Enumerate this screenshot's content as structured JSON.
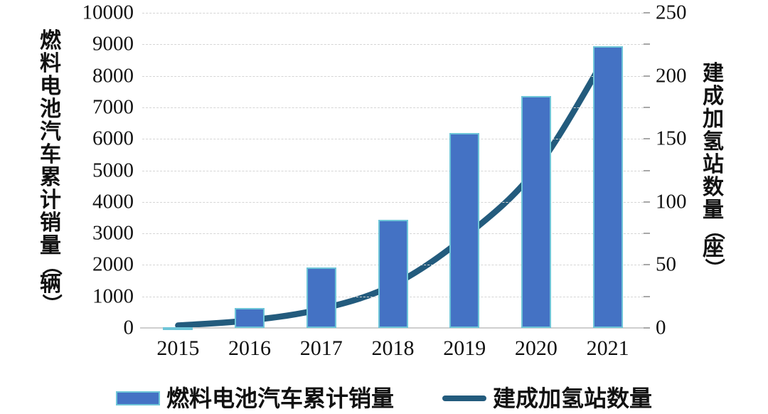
{
  "chart": {
    "colors": {
      "bar_fill": "#4472C4",
      "bar_border": "#6EC5D8",
      "line": "#235B7D",
      "gridline": "#d5d5d5",
      "axis_line": "#cfcfcf",
      "minor_tick": "#a8a8a8",
      "text": "#111111"
    },
    "legend": {
      "items": [
        {
          "label": "燃料电池汽车累计销量",
          "type": "bar"
        },
        {
          "label": "建成加氢站数量",
          "type": "line"
        }
      ]
    }
  },
  "chart_data": {
    "type": "combo-bar-line",
    "categories": [
      "2015",
      "2016",
      "2017",
      "2018",
      "2019",
      "2020",
      "2021"
    ],
    "series": [
      {
        "name": "燃料电池汽车累计销量",
        "type": "bar",
        "y_axis": "left",
        "values": [
          10,
          639,
          1911,
          3428,
          6178,
          7352,
          8938
        ]
      },
      {
        "name": "建成加氢站数量",
        "type": "line",
        "y_axis": "right",
        "values": [
          2,
          6,
          15,
          34,
          72,
          126,
          218
        ]
      }
    ],
    "left_axis": {
      "title": "燃料电池汽车累计销量（辆）",
      "min": 0,
      "max": 10000,
      "step": 1000,
      "tick_labels": [
        "0",
        "1000",
        "2000",
        "3000",
        "4000",
        "5000",
        "6000",
        "7000",
        "8000",
        "9000",
        "10000"
      ]
    },
    "right_axis": {
      "title": "建成加氢站数量（座）",
      "min": 0,
      "max": 250,
      "step": 50,
      "minor_step": 25,
      "tick_labels": [
        "0",
        "50",
        "100",
        "150",
        "200",
        "250"
      ]
    },
    "grid": "horizontal-dashed",
    "legend_position": "bottom",
    "title": ""
  }
}
